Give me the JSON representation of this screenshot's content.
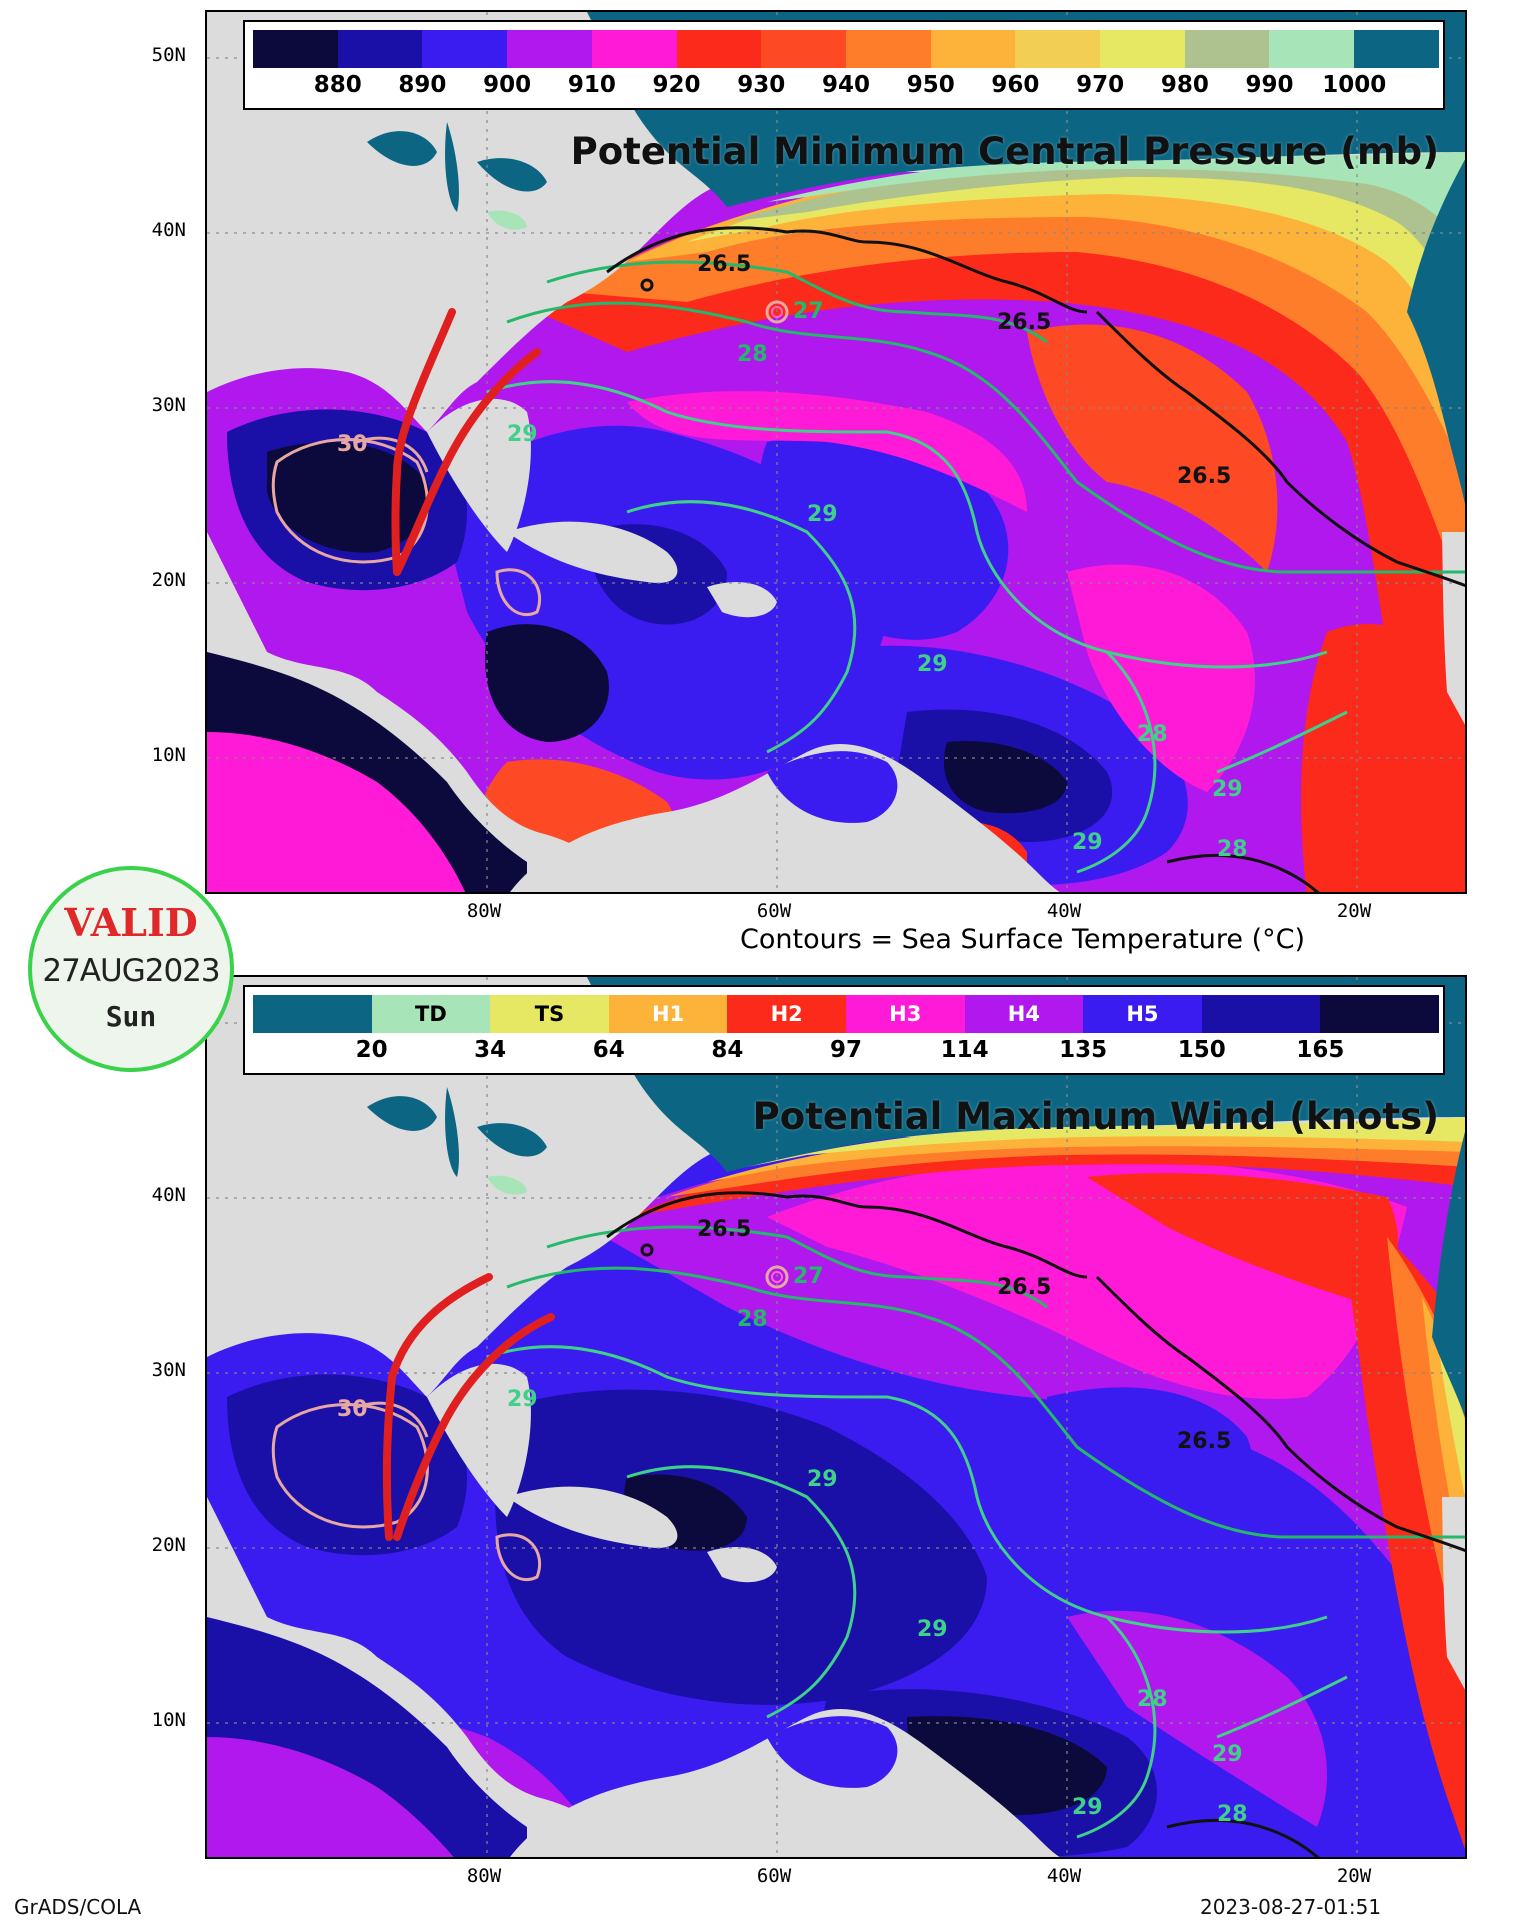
{
  "top": {
    "title": "Potential Minimum Central Pressure (mb)",
    "colors": [
      "#0c0a3d",
      "#1a10a8",
      "#3b1cf0",
      "#b018ee",
      "#ff1ad8",
      "#fb2a1a",
      "#fd4a24",
      "#fe7d2a",
      "#fdb23a",
      "#f2cf52",
      "#e6e762",
      "#aec290",
      "#a7e5b8",
      "#0c6683"
    ],
    "ticks": [
      "880",
      "890",
      "900",
      "910",
      "920",
      "930",
      "940",
      "950",
      "960",
      "970",
      "980",
      "990",
      "1000"
    ]
  },
  "bottom": {
    "title": "Potential Maximum Wind (knots)",
    "colors": [
      "#0c6683",
      "#a7e5b8",
      "#e6e762",
      "#fdb23a",
      "#fb2a1a",
      "#ff1ad8",
      "#b018ee",
      "#3b1cf0",
      "#1a10a8",
      "#0c0a3d"
    ],
    "categories": [
      "",
      "TD",
      "TS",
      "H1",
      "H2",
      "H3",
      "H4",
      "H5",
      "",
      ""
    ],
    "category_text_colors": [
      "#000",
      "#000",
      "#000",
      "#fff",
      "#fff",
      "#fff",
      "#fff",
      "#fff",
      "#fff",
      "#fff"
    ],
    "ticks": [
      "20",
      "34",
      "64",
      "84",
      "97",
      "114",
      "135",
      "150",
      "165"
    ]
  },
  "axes": {
    "lat_labels": [
      "50N",
      "40N",
      "30N",
      "20N",
      "10N"
    ],
    "lon_labels": [
      "80W",
      "60W",
      "40W",
      "20W"
    ]
  },
  "contour_labels": [
    "26.5",
    "27",
    "28",
    "29",
    "30"
  ],
  "caption": "Contours = Sea Surface Temperature (°C)",
  "valid_badge": {
    "title": "VALID",
    "date": "27AUG2023",
    "weekday": "Sun"
  },
  "footer": {
    "left": "GrADS/COLA",
    "right": "2023-08-27-01:51"
  }
}
